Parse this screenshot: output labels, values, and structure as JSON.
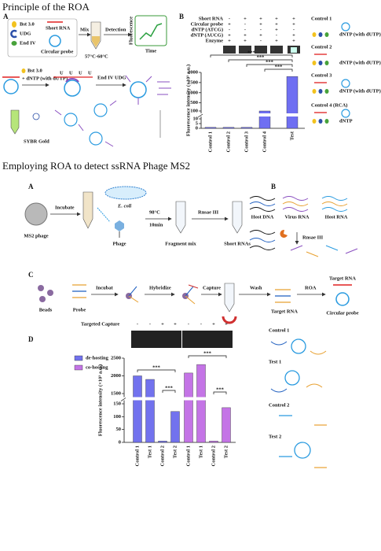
{
  "headings": {
    "principle": "Principle of the ROA",
    "ms2": "Employing ROA to detect ssRNA Phage MS2"
  },
  "principle_a": {
    "label": "A",
    "bst": "Bst 3.0",
    "udg": "UDG",
    "end_iv": "End IV",
    "short_rna": "Short RNA",
    "circular_probe": "Circular probe",
    "mix": "Mix",
    "detection": "Detection",
    "temperature": "57°C-60°C",
    "fluorescence": "Fluorescence",
    "time": "Time",
    "step_bst": "Bst 3.0",
    "step_dntp": "+ dNTP (with dUTP)",
    "step_end_iv": "End IV",
    "step_udg": "UDG",
    "uracil": [
      "U",
      "U",
      "U",
      "U"
    ],
    "stain": "SYBR Gold"
  },
  "principle_b": {
    "label": "B",
    "conditions": [
      {
        "name": "Short RNA",
        "marks": [
          "-",
          "+",
          "+",
          "+",
          "+"
        ]
      },
      {
        "name": "Circular probe",
        "marks": [
          "+",
          "-",
          "+",
          "+",
          "+"
        ]
      },
      {
        "name": "dNTP (ATCG)",
        "marks": [
          "-",
          "-",
          "-",
          "+",
          "-"
        ]
      },
      {
        "name": "dNTP (AUCG)",
        "marks": [
          "+",
          "+",
          "+",
          "-",
          "+"
        ]
      },
      {
        "name": "Enzyme",
        "marks": [
          "+",
          "+",
          "-",
          "+",
          "+"
        ]
      }
    ],
    "legend": [
      {
        "name": "Control 1",
        "dntp": "dNTP (with dUTP)"
      },
      {
        "name": "Control 2",
        "dntp": "dNTP (with dUTP)"
      },
      {
        "name": "Control 3",
        "dntp": "dNTP (with dUTP)"
      },
      {
        "name": "Control 4 (RCA)",
        "dntp": "dNTP"
      }
    ]
  },
  "ms2_a": {
    "label": "A",
    "incubate": "Incubate",
    "ms2_phage": "MS2 phage",
    "e_coli": "E. coli",
    "phage": "Phage",
    "temperature": "98°C",
    "duration": "10min",
    "enzyme": "Rnsae III",
    "fragment_mix": "Fragment mix",
    "short_rnas": "Short RNAs"
  },
  "ms2_b": {
    "label": "B",
    "host_dna": "Host DNA",
    "virus_rna": "Virus RNA",
    "host_rna": "Host RNA",
    "enzyme": "Rnsae III"
  },
  "ms2_c": {
    "label": "C",
    "beads": "Beads",
    "probe": "Probe",
    "incubate": "Incubat",
    "hybridize": "Hybridize",
    "capture": "Capture",
    "wash": "Wash",
    "roa": "ROA",
    "target_rna": "Target RNA",
    "target_rna_2": "Target RNA",
    "circular_probe": "Circular probe"
  },
  "ms2_d": {
    "label": "D",
    "legend": [
      "Control 1",
      "Test 1",
      "Control 2",
      "Test 2"
    ]
  },
  "chart_data": [
    {
      "type": "bar",
      "ylabel": "Fluorescence intensity (×10³ a.u.)",
      "categories": [
        "Control 1",
        "Control 2",
        "Control 3",
        "Control 4",
        "Test"
      ],
      "values": [
        1,
        1,
        1,
        100,
        1800
      ],
      "color": "#6f6ff2",
      "ylim": [
        0,
        2000
      ],
      "ybreak": [
        10,
        100
      ],
      "yticks": [
        0,
        5,
        10,
        100,
        500,
        1000,
        1500,
        2000
      ],
      "annotations": [
        "***",
        "***",
        "***",
        "***"
      ]
    },
    {
      "type": "bar",
      "ylabel": "Fluorescence intensity (×10³ a.u.)",
      "capture_label": "Targeted Capture",
      "capture": [
        "-",
        "-",
        "+",
        "+"
      ],
      "categories": [
        "Control 1",
        "Test 1",
        "Control 2",
        "Test 2"
      ],
      "series": [
        {
          "name": "de-hosting",
          "color": "#7272ee",
          "values": [
            2000,
            1900,
            5,
            120
          ]
        },
        {
          "name": "co-hosting",
          "color": "#c474e6",
          "values": [
            2080,
            2320,
            5,
            135
          ]
        }
      ],
      "ylim": [
        0,
        2500
      ],
      "ybreak": [
        150,
        1500
      ],
      "yticks": [
        0,
        50,
        100,
        150,
        1500,
        2000,
        2500
      ],
      "annotations": [
        "***",
        "***",
        "***",
        "***"
      ]
    }
  ]
}
